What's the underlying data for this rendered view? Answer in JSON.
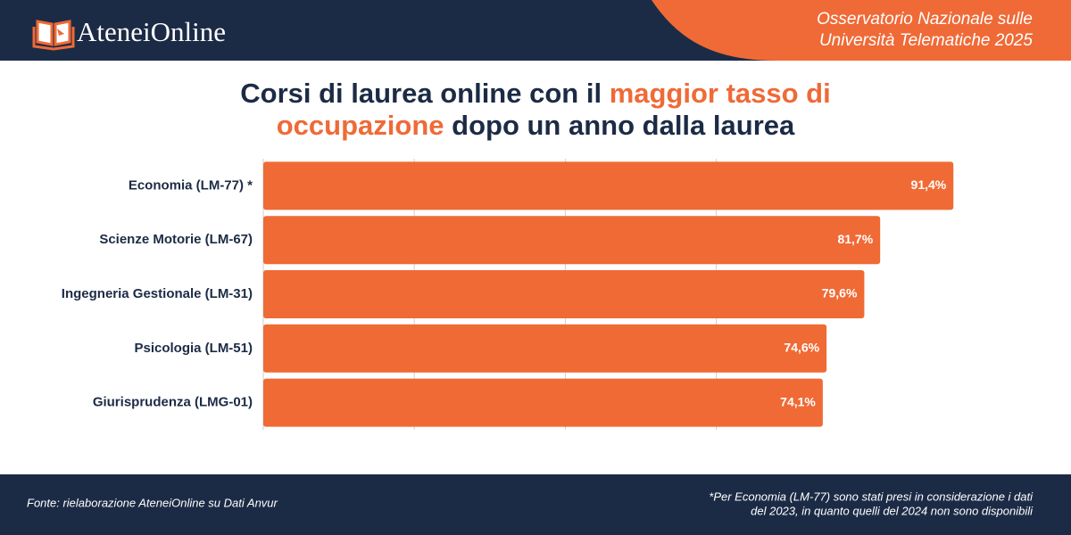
{
  "header": {
    "logo": "AteneiOnline",
    "subtitle_lines": [
      "Osservatorio Nazionale sulle",
      "Università Telematiche 2025"
    ]
  },
  "chart_data": {
    "type": "bar",
    "orientation": "horizontal",
    "title_lines": [
      [
        "Corsi di laurea online con il",
        "maggior tasso di"
      ],
      [
        "occupazione",
        "dopo un anno dalla laurea"
      ]
    ],
    "title_highlight": [
      [
        false,
        true
      ],
      [
        true,
        false
      ]
    ],
    "categories": [
      "Economia (LM-77) *",
      "Scienze Motorie (LM-67)",
      "Ingegneria Gestionale (LM-31)",
      "Psicologia (LM-51)",
      "Giurisprudenza (LMG-01)"
    ],
    "values": [
      91.4,
      81.7,
      79.6,
      74.6,
      74.1
    ],
    "value_labels": [
      "91,4%",
      "81,7%",
      "79,6%",
      "74,6%",
      "74,1%"
    ],
    "color": "#f06a35",
    "xlim": [
      0,
      100
    ],
    "xticks": [
      20,
      40,
      60
    ],
    "grid": true
  },
  "footer": {
    "source": "Fonte: rielaborazione AteneiOnline su Dati Anvur",
    "note_lines": [
      "*Per Economia (LM-77) sono stati presi in considerazione i dati",
      "del 2023, in quanto quelli del 2024 non sono disponibili"
    ]
  }
}
